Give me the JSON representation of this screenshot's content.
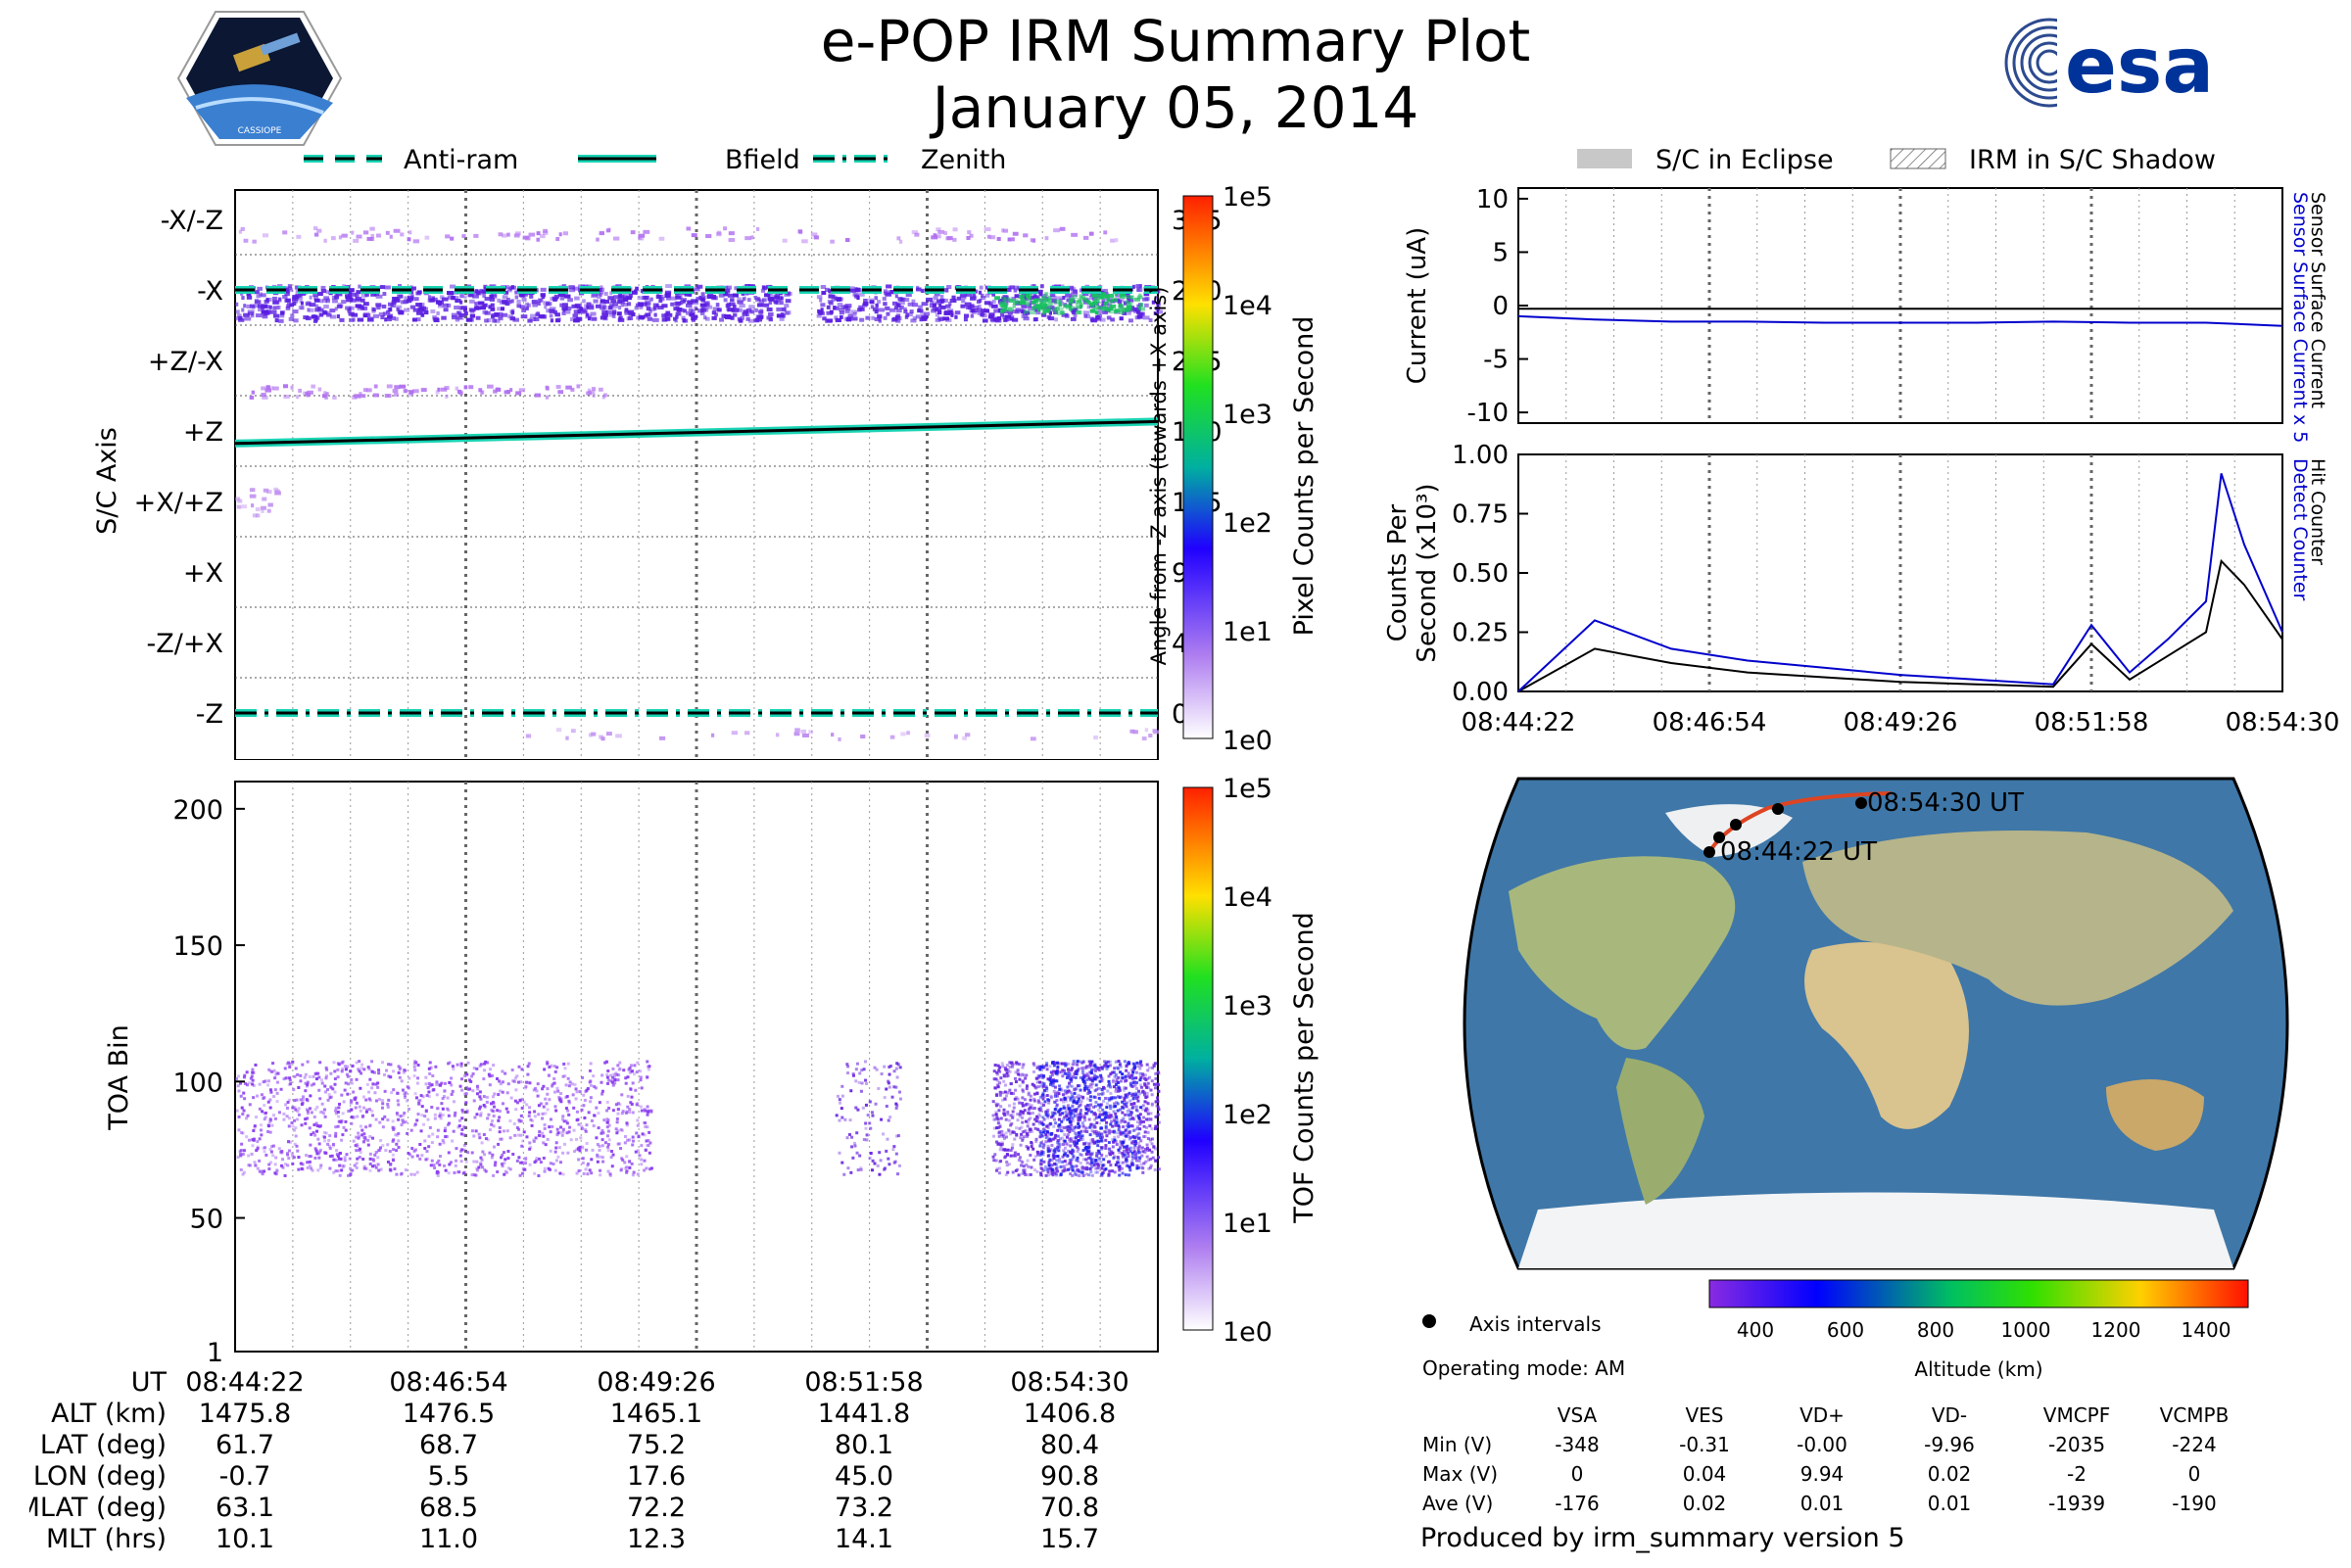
{
  "header": {
    "title": "e-POP IRM Summary Plot",
    "date": "January 05, 2014",
    "logo_left_text": "CASSIOPE",
    "logo_right_text": "esa"
  },
  "legend_top_left": [
    "Anti-ram",
    "Bfield",
    "Zenith"
  ],
  "legend_top_right": [
    "S/C in Eclipse",
    "IRM in S/C Shadow"
  ],
  "colors": {
    "cyan": "#19d4b4",
    "blue": "#0000cc",
    "black": "#000000"
  },
  "ut_ticks": [
    "08:44:22",
    "08:46:54",
    "08:49:26",
    "08:51:58",
    "08:54:30"
  ],
  "chart_data": [
    {
      "type": "heatmap",
      "name": "pixel",
      "ylabel_left": "S/C Axis",
      "ylabel_right": "Angle from -Z axis (towards +X axis)",
      "left_ticks": [
        "-X/-Z",
        "-X",
        "+Z/-X",
        "+Z",
        "+X/+Z",
        "+X",
        "-Z/+X",
        "-Z"
      ],
      "right_ticks": [
        "315",
        "270",
        "225",
        "180",
        "135",
        "90",
        "45",
        "0"
      ],
      "colorbar_label": "Pixel Counts per Second",
      "colorbar_ticks": [
        "1e5",
        "1e4",
        "1e3",
        "1e2",
        "1e1",
        "1e0"
      ],
      "ylim": [
        0,
        360
      ],
      "lines": [
        {
          "name": "Anti-ram",
          "style": "dashed",
          "y": [
            270,
            270
          ]
        },
        {
          "name": "Bfield",
          "style": "solid",
          "y": [
            172,
            186
          ]
        },
        {
          "name": "Zenith",
          "style": "dashdot",
          "y": [
            0,
            0
          ]
        }
      ]
    },
    {
      "type": "heatmap",
      "name": "tof",
      "ylabel": "TOA Bin",
      "yticks": [
        "200",
        "150",
        "100",
        "50",
        "1"
      ],
      "ylim": [
        1,
        210
      ],
      "colorbar_label": "TOF Counts per Second",
      "colorbar_ticks": [
        "1e5",
        "1e4",
        "1e3",
        "1e2",
        "1e1",
        "1e0"
      ]
    },
    {
      "type": "line",
      "name": "current",
      "ylabel": "Current (uA)",
      "ylim": [
        -11,
        11
      ],
      "yticks": [
        "10",
        "5",
        "0",
        "-5",
        "-10"
      ],
      "right_label_blue": "Sensor Surface Current x 5",
      "right_label_black": "Sensor Surface Current",
      "series": [
        {
          "name": "Sensor Surface Current",
          "color": "#000000",
          "values": [
            -0.3,
            -0.3,
            -0.3,
            -0.3,
            -0.3,
            -0.3,
            -0.3,
            -0.3,
            -0.3,
            -0.3,
            -0.3
          ]
        },
        {
          "name": "Sensor Surface Current x 5",
          "color": "#0000cc",
          "values": [
            -1.0,
            -1.3,
            -1.5,
            -1.5,
            -1.6,
            -1.6,
            -1.6,
            -1.5,
            -1.6,
            -1.6,
            -1.9
          ]
        }
      ]
    },
    {
      "type": "line",
      "name": "counts",
      "ylabel_line1": "Counts Per",
      "ylabel_line2": "Second (x10³)",
      "ylim": [
        0,
        1
      ],
      "yticks": [
        "1.00",
        "0.75",
        "0.50",
        "0.25",
        "0.00"
      ],
      "right_label_blue": "Detect Counter",
      "right_label_black": "Hit Counter",
      "x": [
        0,
        0.1,
        0.2,
        0.3,
        0.4,
        0.5,
        0.6,
        0.7,
        0.75,
        0.8,
        0.85,
        0.9,
        0.92,
        0.95,
        1.0
      ],
      "series": [
        {
          "name": "Hit Counter",
          "color": "#000000",
          "values": [
            0.0,
            0.18,
            0.12,
            0.08,
            0.06,
            0.04,
            0.03,
            0.02,
            0.2,
            0.05,
            0.15,
            0.25,
            0.55,
            0.45,
            0.22
          ]
        },
        {
          "name": "Detect Counter",
          "color": "#0000cc",
          "values": [
            0.0,
            0.3,
            0.18,
            0.13,
            0.1,
            0.07,
            0.05,
            0.03,
            0.28,
            0.08,
            0.22,
            0.38,
            0.92,
            0.62,
            0.25
          ]
        }
      ]
    }
  ],
  "map": {
    "start_label": "08:44:22 UT",
    "end_label": "08:54:30 UT",
    "legend_item": "Axis intervals",
    "colorbar_label": "Altitude (km)",
    "colorbar_ticks": [
      "400",
      "600",
      "800",
      "1000",
      "1200",
      "1400"
    ]
  },
  "operating_mode": "Operating mode: AM",
  "voltage_table": {
    "headers": [
      "",
      "VSA",
      "VES",
      "VD+",
      "VD-",
      "VMCPF",
      "VCMPB"
    ],
    "rows": [
      [
        "Min (V)",
        "-348",
        "-0.31",
        "-0.00",
        "-9.96",
        "-2035",
        "-224"
      ],
      [
        "Max (V)",
        "0",
        "0.04",
        "9.94",
        "0.02",
        "-2",
        "0"
      ],
      [
        "Ave (V)",
        "-176",
        "0.02",
        "0.01",
        "0.01",
        "-1939",
        "-190"
      ]
    ]
  },
  "footer": "Produced by irm_summary version 5",
  "ephemeris": {
    "rows": [
      {
        "label": "UT",
        "values": [
          "08:44:22",
          "08:46:54",
          "08:49:26",
          "08:51:58",
          "08:54:30"
        ]
      },
      {
        "label": "ALT (km)",
        "values": [
          "1475.8",
          "1476.5",
          "1465.1",
          "1441.8",
          "1406.8"
        ]
      },
      {
        "label": "LAT (deg)",
        "values": [
          "61.7",
          "68.7",
          "75.2",
          "80.1",
          "80.4"
        ]
      },
      {
        "label": "LON (deg)",
        "values": [
          "-0.7",
          "5.5",
          "17.6",
          "45.0",
          "90.8"
        ]
      },
      {
        "label": "MLAT (deg)",
        "values": [
          "63.1",
          "68.5",
          "72.2",
          "73.2",
          "70.8"
        ]
      },
      {
        "label": "MLT (hrs)",
        "values": [
          "10.1",
          "11.0",
          "12.3",
          "14.1",
          "15.7"
        ]
      }
    ]
  }
}
